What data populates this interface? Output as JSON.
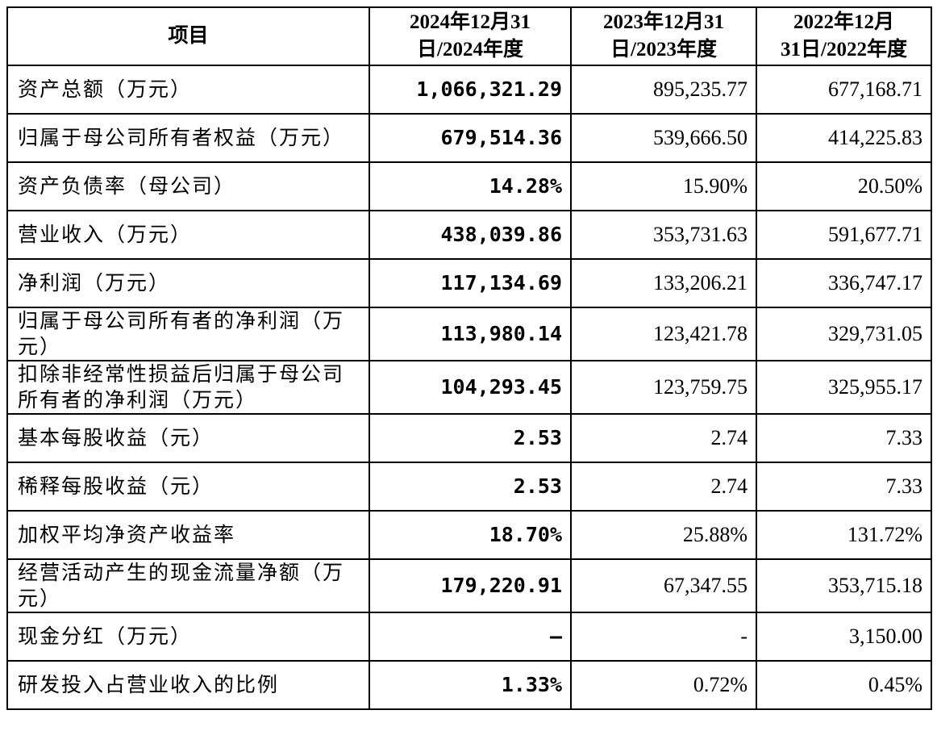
{
  "table": {
    "header": [
      [
        "项目"
      ],
      [
        "2024年12月31",
        "日/2024年度"
      ],
      [
        "2023年12月31",
        "日/2023年度"
      ],
      [
        "2022年12月",
        "31日/2022年度"
      ]
    ],
    "rows": [
      [
        "资产总额（万元）",
        "1,066,321.29",
        "895,235.77",
        "677,168.71"
      ],
      [
        "归属于母公司所有者权益（万元）",
        "679,514.36",
        "539,666.50",
        "414,225.83"
      ],
      [
        "资产负债率（母公司）",
        "14.28%",
        "15.90%",
        "20.50%"
      ],
      [
        "营业收入（万元）",
        "438,039.86",
        "353,731.63",
        "591,677.71"
      ],
      [
        "净利润（万元）",
        "117,134.69",
        "133,206.21",
        "336,747.17"
      ],
      [
        "归属于母公司所有者的净利润（万元）",
        "113,980.14",
        "123,421.78",
        "329,731.05"
      ],
      [
        "扣除非经常性损益后归属于母公司所有者的净利润（万元）",
        "104,293.45",
        "123,759.75",
        "325,955.17"
      ],
      [
        "基本每股收益（元）",
        "2.53",
        "2.74",
        "7.33"
      ],
      [
        "稀释每股收益（元）",
        "2.53",
        "2.74",
        "7.33"
      ],
      [
        "加权平均净资产收益率",
        "18.70%",
        "25.88%",
        "131.72%"
      ],
      [
        "经营活动产生的现金流量净额（万元）",
        "179,220.91",
        "67,347.55",
        "353,715.18"
      ],
      [
        "现金分红（万元）",
        "–",
        "-",
        "3,150.00"
      ],
      [
        "研发投入占营业收入的比例",
        "1.33%",
        "0.72%",
        "0.45%"
      ]
    ]
  }
}
